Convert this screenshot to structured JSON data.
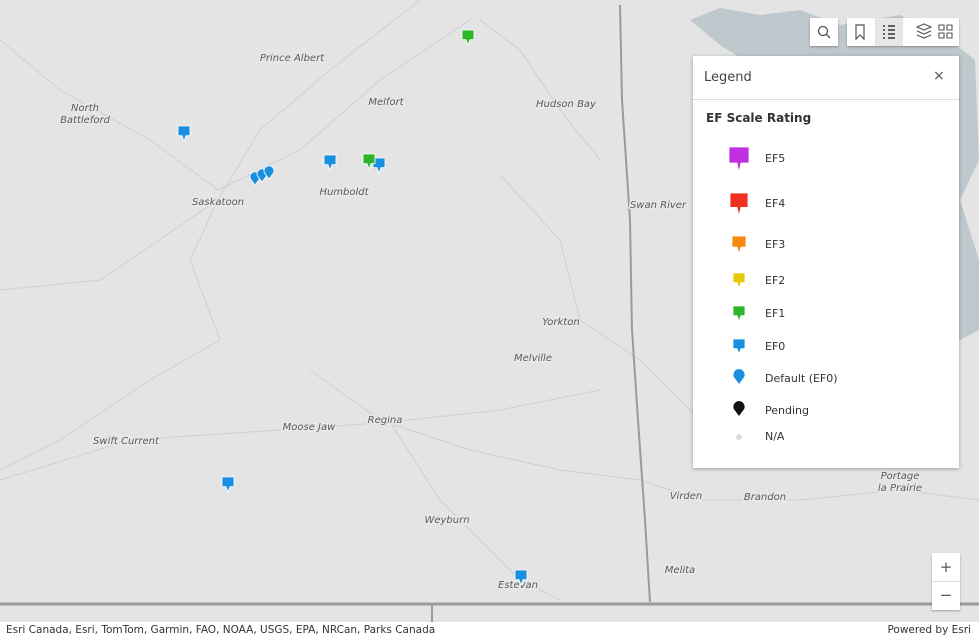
{
  "map": {
    "places": [
      [
        "Prince Albert"
      ],
      [
        "North",
        "Battleford"
      ],
      [
        "Melfort"
      ],
      [
        "Hudson Bay"
      ],
      [
        "Saskatoon"
      ],
      [
        "Humboldt"
      ],
      [
        "Swan River"
      ],
      [
        "Yorkton"
      ],
      [
        "Melville"
      ],
      [
        "Swift Current"
      ],
      [
        "Moose Jaw"
      ],
      [
        "Regina"
      ],
      [
        "Weyburn"
      ],
      [
        "Estevan"
      ],
      [
        "Virden"
      ],
      [
        "Brandon"
      ],
      [
        "Portage",
        "la Prairie"
      ],
      [
        "Melita"
      ]
    ]
  },
  "legend": {
    "title": "Legend",
    "heading": "EF Scale Rating",
    "items": [
      "EF5",
      "EF4",
      "EF3",
      "EF2",
      "EF1",
      "EF0",
      "Default (EF0)",
      "Pending",
      "N/A"
    ]
  },
  "attribution": "Esri Canada, Esri, TomTom, Garmin, FAO, NOAA, USGS, EPA, NRCan, Parks Canada",
  "powered_by": "Powered by Esri"
}
